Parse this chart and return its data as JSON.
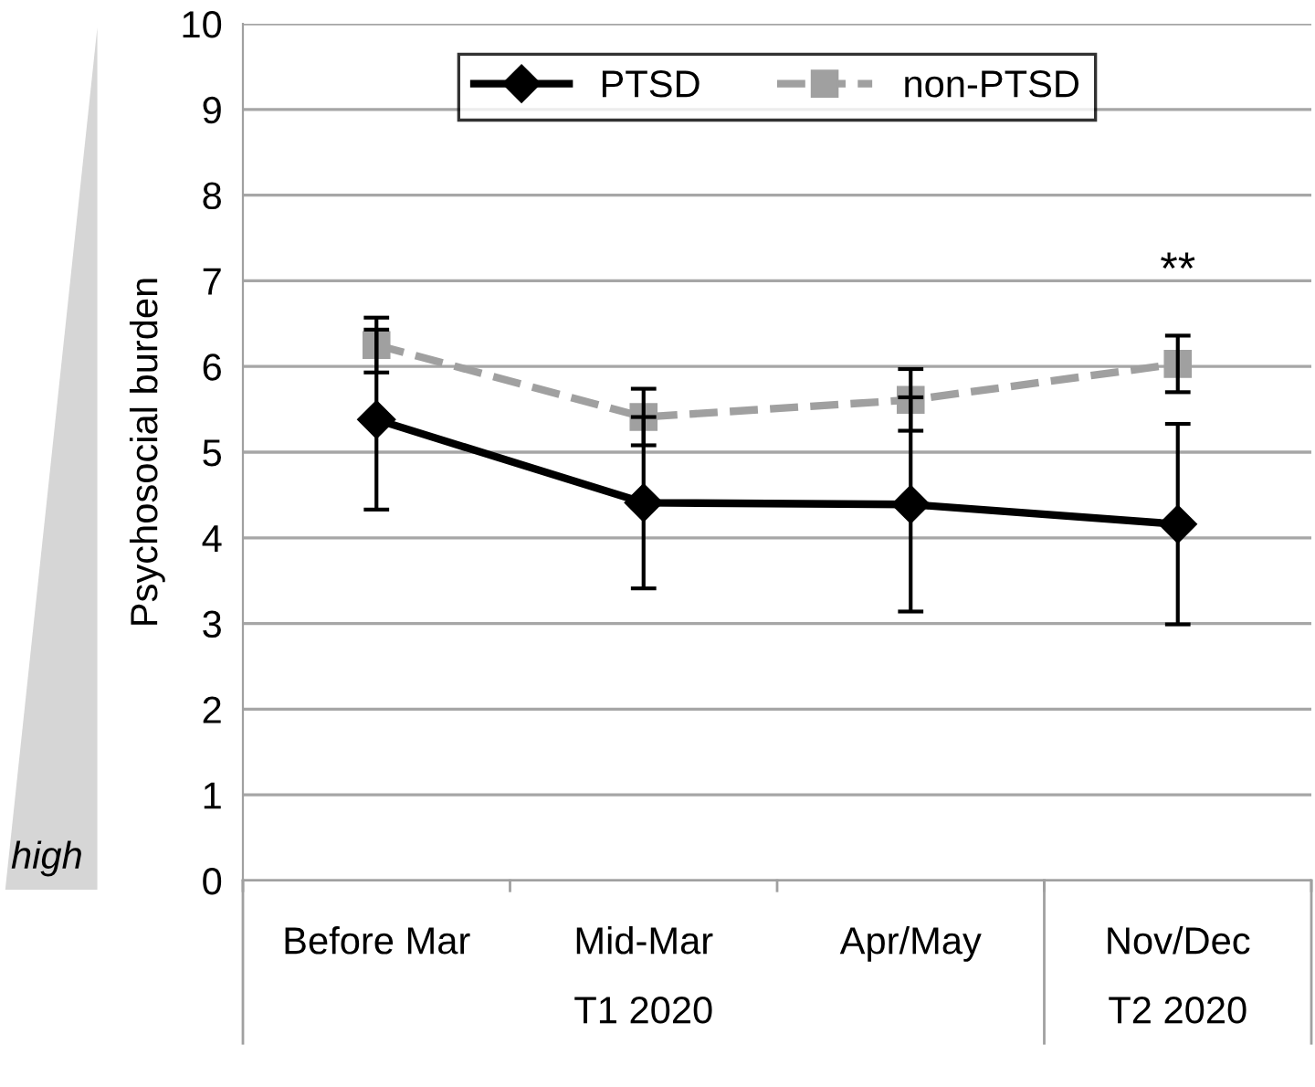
{
  "chart_data": {
    "type": "line",
    "ylabel": "Psychosocial burden",
    "categories": [
      "Before Mar",
      "Mid-Mar",
      "Apr/May",
      "Nov/Dec"
    ],
    "series": [
      {
        "name": "PTSD",
        "color": "#000000",
        "marker": "diamond",
        "line_style": "solid",
        "values": [
          5.38,
          4.41,
          4.39,
          4.16
        ],
        "errors": [
          1.05,
          1.0,
          1.25,
          1.17
        ]
      },
      {
        "name": "non-PTSD",
        "color": "#a0a0a0",
        "marker": "square",
        "line_style": "dashed",
        "values": [
          6.25,
          5.41,
          5.61,
          6.03
        ],
        "errors": [
          0.32,
          0.33,
          0.36,
          0.33
        ]
      }
    ],
    "ylim": [
      0,
      10
    ],
    "yticks": [
      0,
      1,
      2,
      3,
      4,
      5,
      6,
      7,
      8,
      9,
      10
    ],
    "grid": "y",
    "legend": "top",
    "annotations": [
      "**",
      "T1 2020",
      "T2 2020",
      "high"
    ]
  }
}
